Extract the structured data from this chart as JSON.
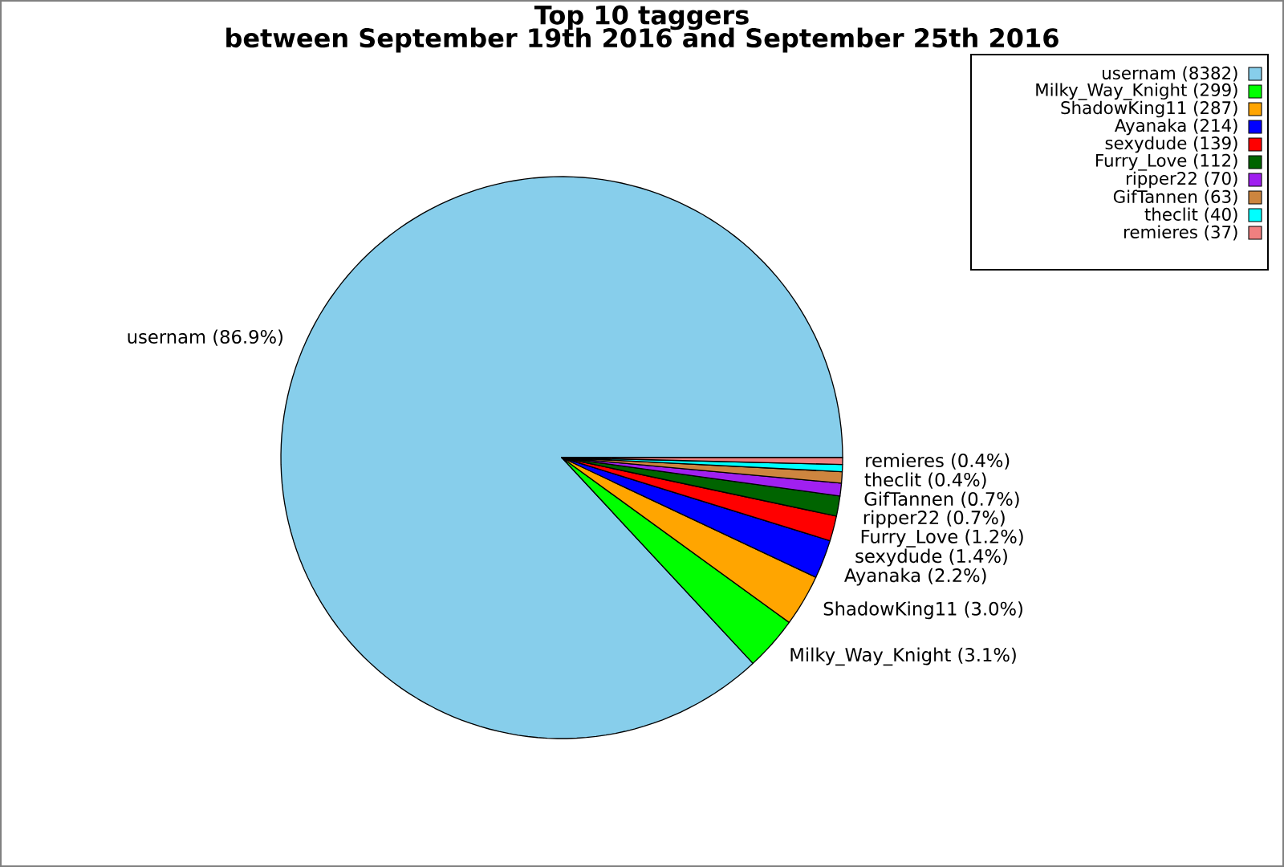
{
  "chart_data": {
    "type": "pie",
    "title": "Top 10 taggers",
    "subtitle": "between September 19th 2016 and September 25th 2016",
    "categories": [
      "usernam (8382)",
      "Milky_Way_Knight (299)",
      "ShadowKing11 (287)",
      "Ayanaka (214)",
      "sexydude (139)",
      "Furry_Love (112)",
      "ripper22 (70)",
      "GifTannen (63)",
      "theclit (40)",
      "remieres (37)"
    ],
    "values": [
      86.92,
      3.1,
      2.98,
      2.22,
      1.44,
      1.16,
      0.73,
      0.65,
      0.41,
      0.39
    ],
    "colors": [
      "#87ceeb",
      "#00ff00",
      "#ffa500",
      "#0000ff",
      "#ff0000",
      "#006400",
      "#a020f0",
      "#cd853f",
      "#00ffff",
      "#f08080"
    ],
    "value_labels": [
      "usernam (86.9%)",
      "Milky_Way_Knight (3.1%)",
      "ShadowKing11 (3.0%)",
      "Ayanaka (2.2%)",
      "sexydude (1.4%)",
      "Furry_Love (1.2%)",
      "ripper22 (0.7%)",
      "GifTannen (0.7%)",
      "theclit (0.4%)",
      "remieres (0.4%)"
    ],
    "legend": "top right"
  }
}
